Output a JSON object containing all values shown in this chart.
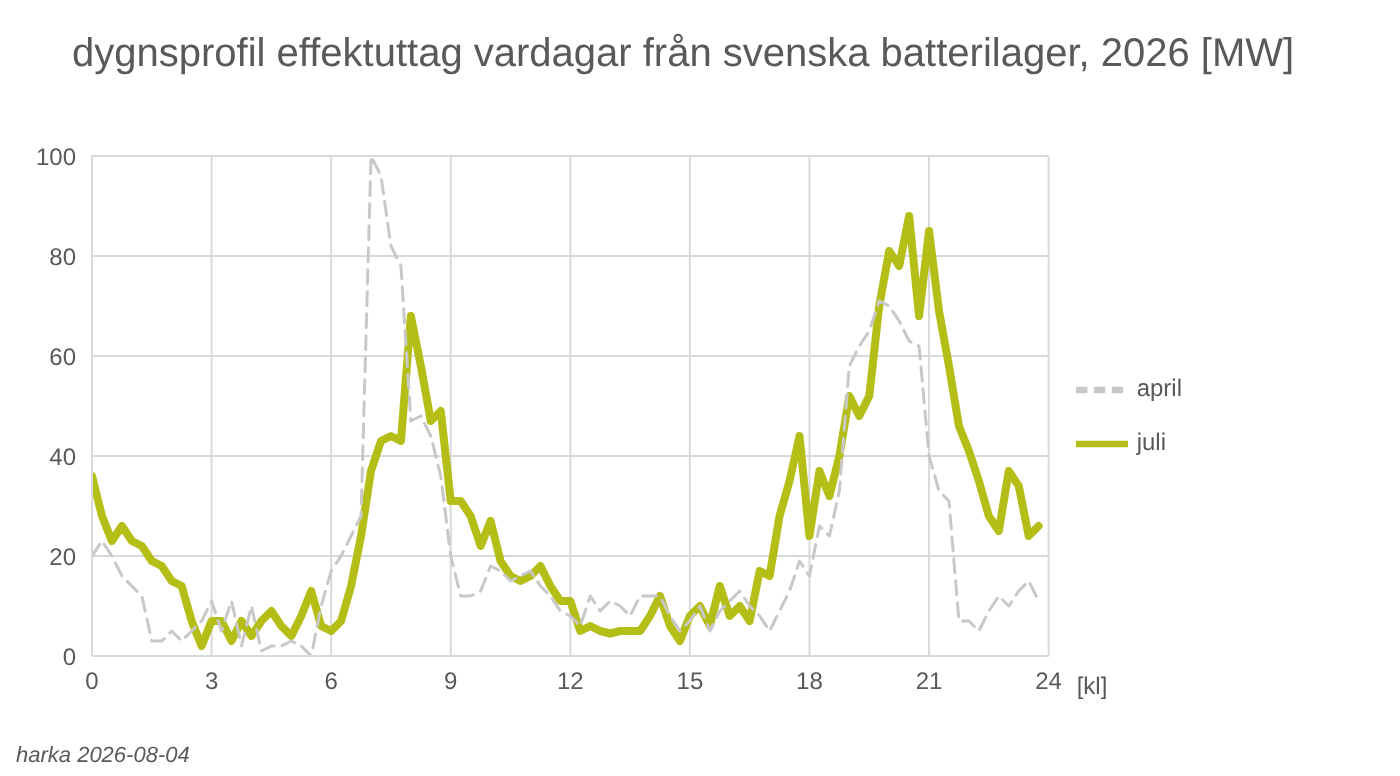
{
  "chart_data": {
    "type": "line",
    "title": "dygnsprofil effektuttag vardagar från svenska batterilager, 2026 [MW]",
    "xlabel": "[kl]",
    "x": [
      0,
      0.25,
      0.5,
      0.75,
      1,
      1.25,
      1.5,
      1.75,
      2,
      2.25,
      2.5,
      2.75,
      3,
      3.25,
      3.5,
      3.75,
      4,
      4.25,
      4.5,
      4.75,
      5,
      5.25,
      5.5,
      5.75,
      6,
      6.25,
      6.5,
      6.75,
      7,
      7.25,
      7.5,
      7.75,
      8,
      8.25,
      8.5,
      8.75,
      9,
      9.25,
      9.5,
      9.75,
      10,
      10.25,
      10.5,
      10.75,
      11,
      11.25,
      11.5,
      11.75,
      12,
      12.25,
      12.5,
      12.75,
      13,
      13.25,
      13.5,
      13.75,
      14,
      14.25,
      14.5,
      14.75,
      15,
      15.25,
      15.5,
      15.75,
      16,
      16.25,
      16.5,
      16.75,
      17,
      17.25,
      17.5,
      17.75,
      18,
      18.25,
      18.5,
      18.75,
      19,
      19.25,
      19.5,
      19.75,
      20,
      20.25,
      20.5,
      20.75,
      21,
      21.25,
      21.5,
      21.75,
      22,
      22.25,
      22.5,
      22.75,
      23,
      23.25,
      23.5,
      23.75
    ],
    "series": [
      {
        "name": "juli",
        "color": "#b5bd17",
        "line_style": "solid",
        "values": [
          36,
          28,
          23,
          26,
          23,
          22,
          19,
          18,
          15,
          14,
          7,
          2,
          7,
          7,
          3,
          7,
          4,
          7,
          9,
          6,
          4,
          8,
          13,
          6,
          5,
          7,
          14,
          24,
          37,
          43,
          44,
          43,
          68,
          58,
          47,
          49,
          31,
          31,
          28,
          22,
          27,
          19,
          16,
          15,
          16,
          18,
          14,
          11,
          11,
          5,
          6,
          5,
          4.5,
          5,
          5,
          5,
          8,
          12,
          6,
          3,
          8,
          10,
          6,
          14,
          8,
          10,
          7,
          17,
          16,
          28,
          35,
          44,
          24,
          37,
          32,
          40,
          52,
          48,
          52,
          70,
          81,
          78,
          88,
          68,
          85,
          69,
          58,
          46,
          41,
          35,
          28,
          25,
          37,
          34,
          24,
          26
        ]
      },
      {
        "name": "april",
        "color": "#c8c8c8",
        "line_style": "dashed",
        "values": [
          20,
          23,
          20,
          16,
          14,
          12,
          3,
          3,
          5,
          3,
          5,
          7,
          11,
          5,
          11,
          2,
          10,
          1,
          2,
          2,
          3,
          2,
          0,
          10,
          17,
          20,
          24,
          28,
          100,
          96,
          82,
          78,
          47,
          48,
          44,
          36,
          20,
          12,
          12,
          13,
          18,
          17,
          15,
          16,
          17,
          14,
          12,
          9,
          8,
          6,
          12,
          9,
          11,
          10,
          8,
          12,
          12,
          12,
          8,
          5,
          7,
          10,
          5,
          9,
          11,
          13,
          10,
          8,
          5,
          9,
          13,
          19,
          16,
          26,
          24,
          33,
          58,
          62,
          65,
          71,
          70,
          67,
          63,
          62,
          40,
          33,
          31,
          7,
          7,
          5,
          9,
          12,
          10,
          13,
          15,
          11
        ]
      }
    ],
    "xlim": [
      0,
      24
    ],
    "xticks": [
      0,
      3,
      6,
      9,
      12,
      15,
      18,
      21,
      24
    ],
    "ylim": [
      0,
      100
    ],
    "yticks": [
      0,
      20,
      40,
      60,
      80,
      100
    ],
    "grid": true,
    "legend": "right",
    "marker": "none",
    "annotations": [
      "harka 2026-08-04"
    ]
  }
}
